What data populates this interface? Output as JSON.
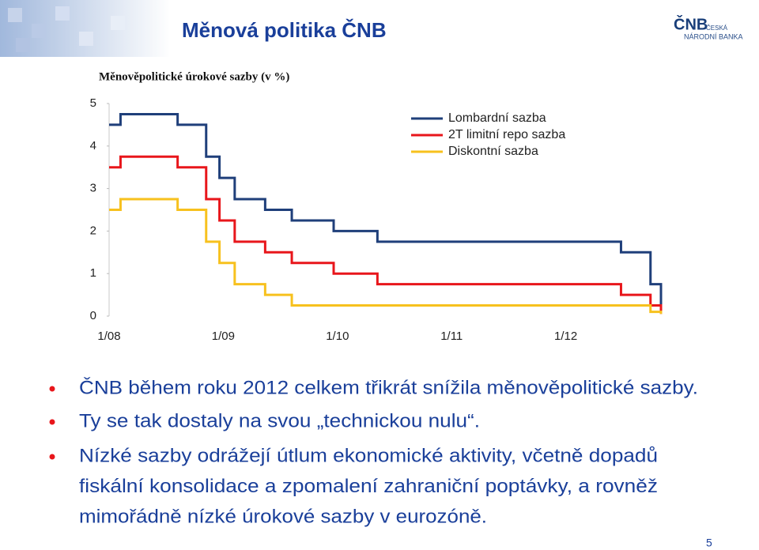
{
  "header": {
    "title": "Měnová politika ČNB",
    "logo": {
      "short": "ČNB",
      "line1": "ČESKÁ",
      "line2": "NÁRODNÍ BANKA"
    }
  },
  "chart_data": {
    "type": "step-line",
    "title": "Měnověpolitické úrokové sazby (v %)",
    "x": [
      0,
      1.2,
      7.2,
      10.2,
      11.6,
      13.2,
      16.4,
      19.2,
      23.6,
      28.2,
      53.8,
      56.9,
      58
    ],
    "xlim": [
      0,
      58
    ],
    "xticks": [
      {
        "value": 0,
        "label": "1/08"
      },
      {
        "value": 12,
        "label": "1/09"
      },
      {
        "value": 24,
        "label": "1/10"
      },
      {
        "value": 36,
        "label": "1/11"
      },
      {
        "value": 48,
        "label": "1/12"
      }
    ],
    "ylim": [
      0,
      5
    ],
    "yticks": [
      0,
      1,
      2,
      3,
      4,
      5
    ],
    "grid": false,
    "legend": "upper-right",
    "series": [
      {
        "name": "Lombardní sazba",
        "color": "#1f3f7a",
        "values": [
          4.5,
          4.75,
          4.5,
          3.75,
          3.25,
          2.75,
          2.5,
          2.25,
          2.0,
          1.75,
          1.5,
          0.75,
          0.25
        ]
      },
      {
        "name": "2T limitní repo sazba",
        "color": "#e8161b",
        "values": [
          3.5,
          3.75,
          3.5,
          2.75,
          2.25,
          1.75,
          1.5,
          1.25,
          1.0,
          0.75,
          0.5,
          0.25,
          0.05
        ]
      },
      {
        "name": "Diskontní sazba",
        "color": "#f7c11e",
        "values": [
          2.5,
          2.75,
          2.5,
          1.75,
          1.25,
          0.75,
          0.5,
          0.25,
          0.25,
          0.25,
          0.25,
          0.1,
          0.05
        ]
      }
    ]
  },
  "bullets": [
    {
      "lines": [
        "ČNB během roku 2012 celkem třikrát snížila měnověpolitické sazby."
      ]
    },
    {
      "lines": [
        "Ty se tak dostaly na svou „technickou nulu“."
      ]
    },
    {
      "lines": [
        "Nízké sazby odrážejí útlum ekonomické aktivity, včetně dopadů",
        "fiskální konsolidace a zpomalení zahraniční poptávky, a rovněž",
        "mimořádně nízké úrokové sazby v eurozóně."
      ]
    }
  ],
  "page_number": "5"
}
